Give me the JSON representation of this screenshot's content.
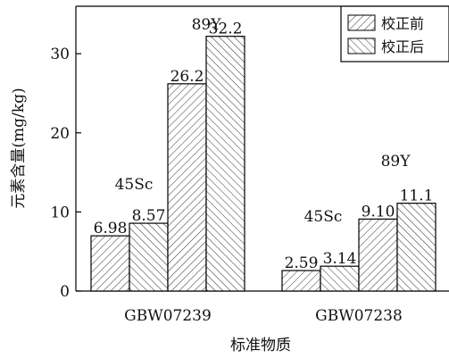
{
  "chart_data": {
    "type": "bar",
    "title": "",
    "xlabel": "标准物质",
    "ylabel": "元素含量(mg/kg)",
    "ylim": [
      0,
      36
    ],
    "yticks": [
      "0",
      "10",
      "20",
      "30"
    ],
    "grid": false,
    "legend_placement": "top-right",
    "categories": [
      "GBW07239",
      "GBW07238"
    ],
    "series": [
      {
        "name": "校正前",
        "pattern": "hatch-forward"
      },
      {
        "name": "校正后",
        "pattern": "hatch-backward"
      }
    ],
    "bars": [
      {
        "category": "GBW07239",
        "element": "45Sc",
        "series": "校正前",
        "value": 6.98,
        "label": "6.98"
      },
      {
        "category": "GBW07239",
        "element": "45Sc",
        "series": "校正后",
        "value": 8.57,
        "label": "8.57"
      },
      {
        "category": "GBW07239",
        "element": "89Y",
        "series": "校正前",
        "value": 26.2,
        "label": "26.2"
      },
      {
        "category": "GBW07239",
        "element": "89Y",
        "series": "校正后",
        "value": 32.2,
        "label": "32.2"
      },
      {
        "category": "GBW07238",
        "element": "45Sc",
        "series": "校正前",
        "value": 2.59,
        "label": "2.59"
      },
      {
        "category": "GBW07238",
        "element": "45Sc",
        "series": "校正后",
        "value": 3.14,
        "label": "3.14"
      },
      {
        "category": "GBW07238",
        "element": "89Y",
        "series": "校正前",
        "value": 9.1,
        "label": "9.10"
      },
      {
        "category": "GBW07238",
        "element": "89Y",
        "series": "校正后",
        "value": 11.1,
        "label": "11.1"
      }
    ],
    "annotations": [
      {
        "text": "45Sc",
        "category": "GBW07239"
      },
      {
        "text": "89Y",
        "category": "GBW07239"
      },
      {
        "text": "45Sc",
        "category": "GBW07238"
      },
      {
        "text": "89Y",
        "category": "GBW07238"
      }
    ],
    "colors": {
      "axis": "#000000",
      "bar_fill": "#ffffff",
      "hatch": "#333333"
    }
  }
}
